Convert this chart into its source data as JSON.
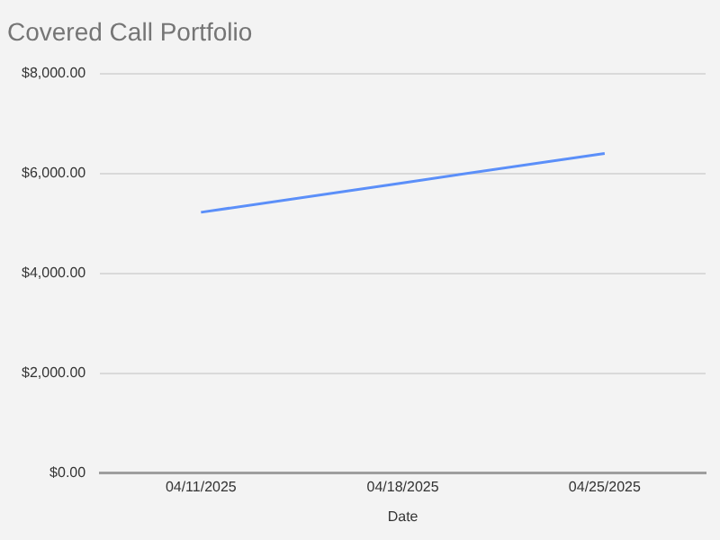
{
  "chart_data": {
    "type": "line",
    "title": "Covered Call Portfolio",
    "xlabel": "Date",
    "categories": [
      "04/11/2025",
      "04/18/2025",
      "04/25/2025"
    ],
    "series": [
      {
        "color": "#5b8ff9",
        "values": [
          5220,
          5810,
          6400
        ]
      }
    ],
    "ylim": [
      0,
      8000
    ],
    "yticks": [
      {
        "value": 0,
        "label": "$0.00"
      },
      {
        "value": 2000,
        "label": "$2,000.00"
      },
      {
        "value": 4000,
        "label": "$4,000.00"
      },
      {
        "value": 6000,
        "label": "$6,000.00"
      },
      {
        "value": 8000,
        "label": "$8,000.00"
      }
    ],
    "grid": "y",
    "legend": false,
    "marker": "none",
    "line_style": "solid"
  }
}
